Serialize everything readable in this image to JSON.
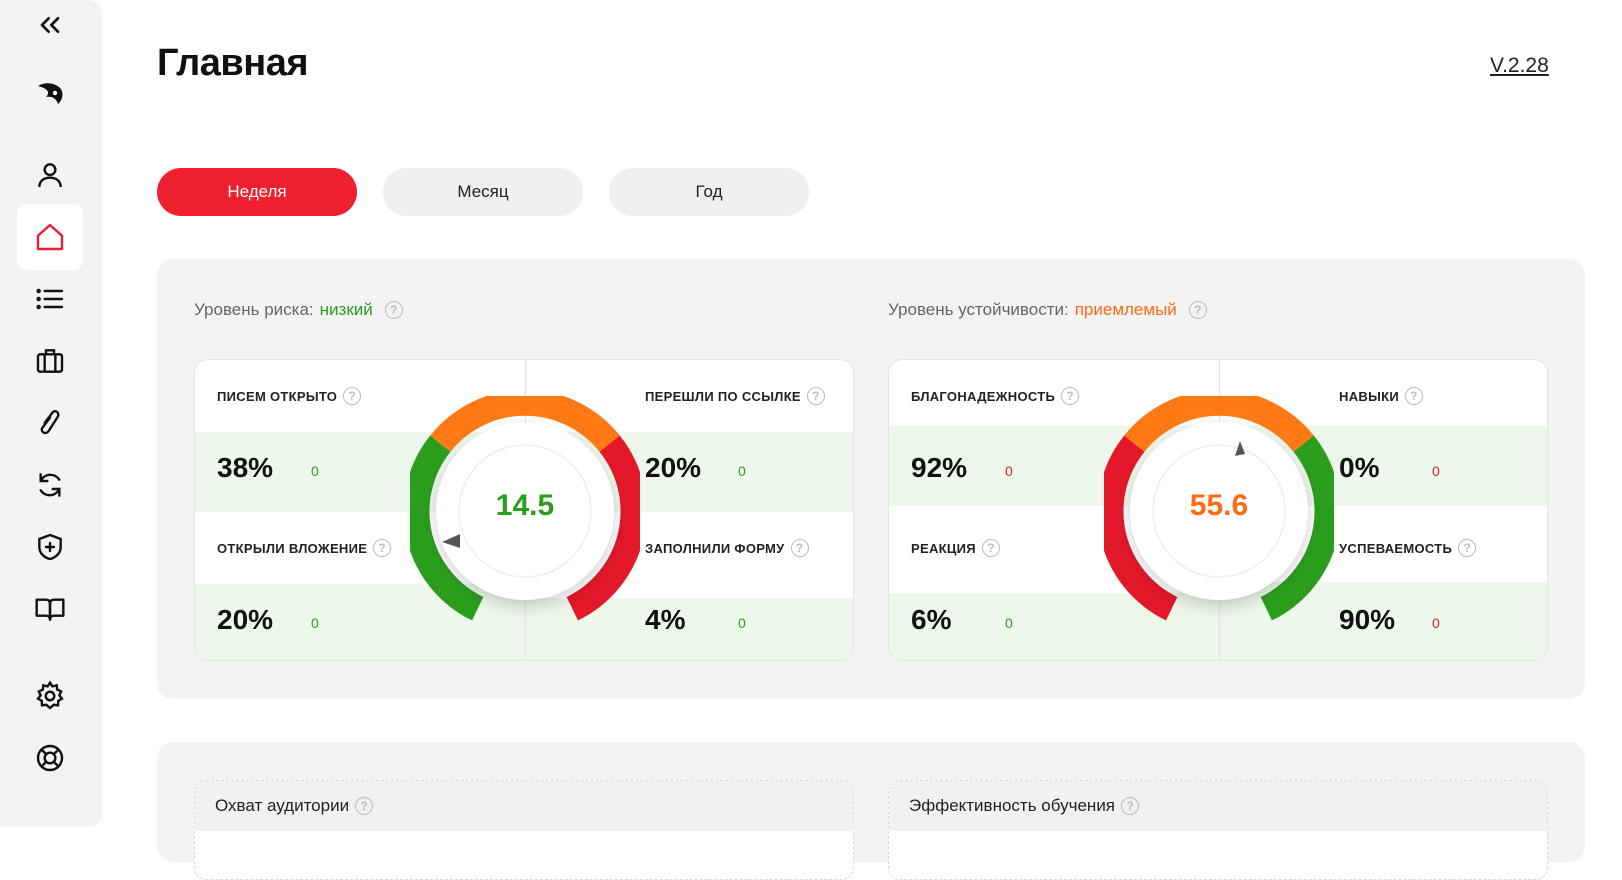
{
  "header": {
    "title": "Главная",
    "version": "V.2.28"
  },
  "tabs": [
    {
      "label": "Неделя",
      "active": true
    },
    {
      "label": "Месяц",
      "active": false
    },
    {
      "label": "Год",
      "active": false
    }
  ],
  "sidebar": {
    "icons": [
      "collapse-icon",
      "logo-icon",
      "user-icon",
      "home-icon",
      "list-icon",
      "briefcase-icon",
      "paperclip-icon",
      "sync-icon",
      "shield-plus-icon",
      "book-icon",
      "gear-icon",
      "lifebuoy-icon"
    ],
    "active": "home-icon"
  },
  "risk": {
    "label": "Уровень риска:",
    "value": "низкий",
    "gauge_value": "14.5",
    "cells": {
      "tl": {
        "label": "ПИСЕМ ОТКРЫТО",
        "value": "38%",
        "delta": "0"
      },
      "tr": {
        "label": "ПЕРЕШЛИ ПО ССЫЛКЕ",
        "value": "20%",
        "delta": "0"
      },
      "bl": {
        "label": "ОТКРЫЛИ ВЛОЖЕНИЕ",
        "value": "20%",
        "delta": "0"
      },
      "br": {
        "label": "ЗАПОЛНИЛИ ФОРМУ",
        "value": "4%",
        "delta": "0"
      }
    }
  },
  "stability": {
    "label": "Уровень устойчивости:",
    "value": "приемлемый",
    "gauge_value": "55.6",
    "cells": {
      "tl": {
        "label": "БЛАГОНАДЕЖНОСТЬ",
        "value": "92%",
        "delta": "0"
      },
      "tr": {
        "label": "НАВЫКИ",
        "value": "0%",
        "delta": "0"
      },
      "bl": {
        "label": "РЕАКЦИЯ",
        "value": "6%",
        "delta": "0"
      },
      "br": {
        "label": "УСПЕВАЕМОСТЬ",
        "value": "90%",
        "delta": "0"
      }
    }
  },
  "bottom": {
    "left_title": "Охват аудитории",
    "right_title": "Эффективность обучения"
  },
  "colors": {
    "accent": "#ee1f2f",
    "green": "#2a9e1c",
    "orange": "#ff6a14",
    "red": "#e02424"
  }
}
